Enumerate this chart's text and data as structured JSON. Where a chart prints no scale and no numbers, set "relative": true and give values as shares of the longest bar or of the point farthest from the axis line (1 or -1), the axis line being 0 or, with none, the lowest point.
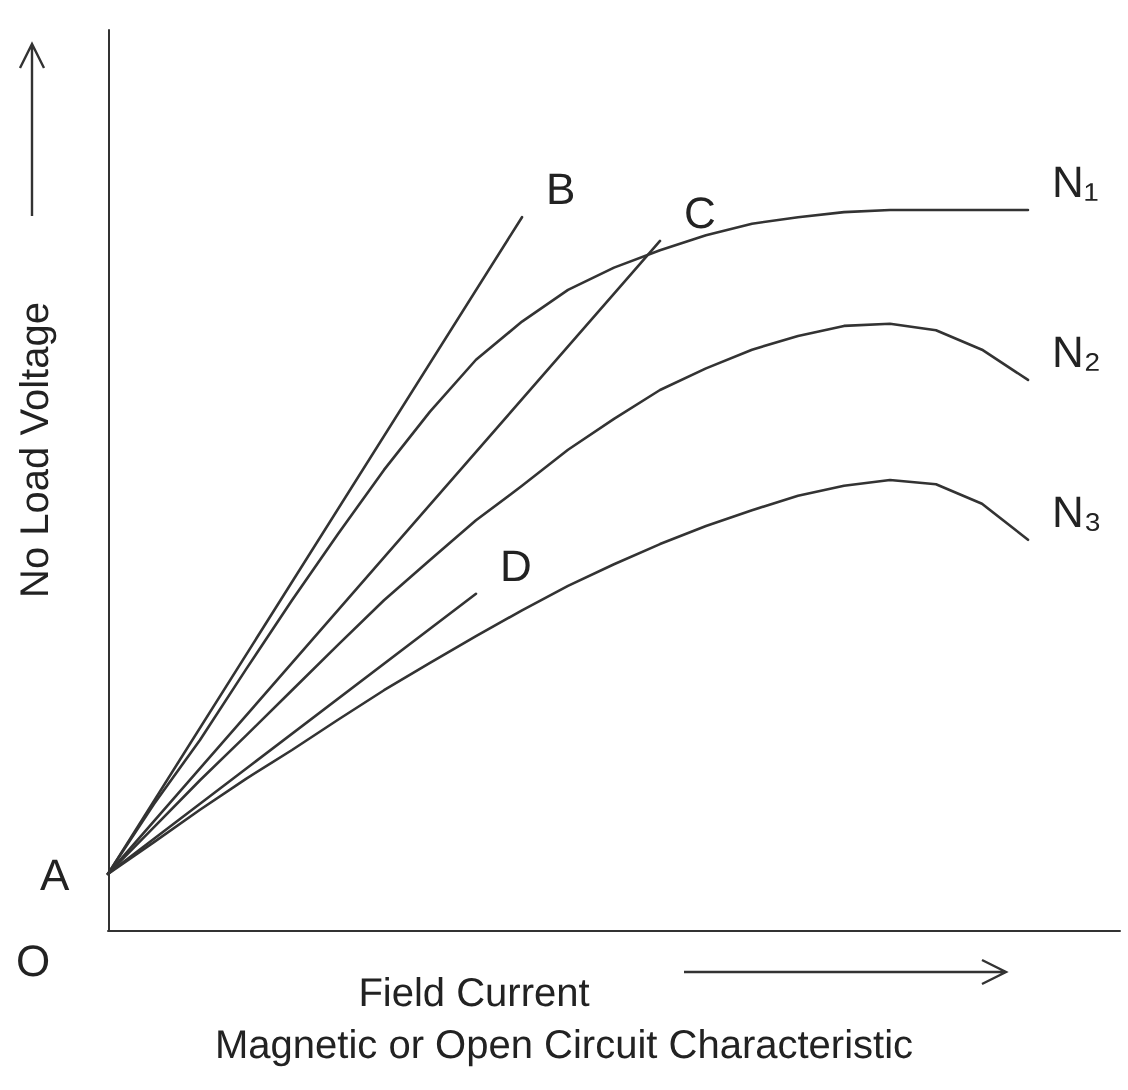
{
  "chart_data": {
    "type": "line",
    "title": "Magnetic or Open Circuit Characteristic",
    "xlabel": "Field Current",
    "ylabel": "No Load Voltage",
    "relative": true,
    "legend": false,
    "grid": false,
    "marker": "none",
    "line_style": "solid",
    "annotations": [
      "A",
      "O"
    ],
    "categories": [
      null,
      null,
      null,
      null,
      null,
      null,
      null,
      null,
      null,
      null,
      null,
      null,
      null,
      null,
      null,
      null,
      null,
      null,
      null,
      null,
      null,
      null,
      null
    ],
    "series": [
      {
        "name": "B",
        "color": "#333333",
        "values": [
          0.078,
          null,
          null,
          null,
          null,
          null,
          null,
          null,
          null,
          0.99,
          null,
          null,
          null,
          null,
          null,
          null,
          null,
          null,
          null,
          null,
          null,
          null,
          null
        ]
      },
      {
        "name": "C",
        "color": "#333333",
        "values": [
          0.078,
          null,
          null,
          null,
          null,
          null,
          null,
          null,
          null,
          null,
          null,
          null,
          0.957,
          null,
          null,
          null,
          null,
          null,
          null,
          null,
          null,
          null,
          null
        ]
      },
      {
        "name": "D",
        "color": "#333333",
        "values": [
          0.078,
          null,
          null,
          null,
          null,
          null,
          null,
          null,
          0.467,
          null,
          null,
          null,
          null,
          null,
          null,
          null,
          null,
          null,
          null,
          null,
          null,
          null,
          null
        ]
      },
      {
        "name": "N₁",
        "color": "#333333",
        "values": [
          0.078,
          0.175,
          0.264,
          0.362,
          0.458,
          0.55,
          0.639,
          0.72,
          0.792,
          0.845,
          0.889,
          0.92,
          0.944,
          0.965,
          0.981,
          0.99,
          0.997,
          1.0,
          1.0,
          1.0,
          1.0,
          null,
          null
        ]
      },
      {
        "name": "N₂",
        "color": "#333333",
        "values": [
          0.078,
          0.143,
          0.208,
          0.27,
          0.333,
          0.396,
          0.458,
          0.514,
          0.569,
          0.617,
          0.667,
          0.71,
          0.75,
          0.78,
          0.806,
          0.825,
          0.839,
          0.842,
          0.833,
          0.806,
          0.764,
          null,
          null
        ]
      },
      {
        "name": "N₃",
        "color": "#333333",
        "values": [
          0.078,
          0.122,
          0.167,
          0.21,
          0.25,
          0.292,
          0.333,
          0.371,
          0.408,
          0.444,
          0.478,
          0.508,
          0.536,
          0.561,
          0.583,
          0.603,
          0.617,
          0.625,
          0.619,
          0.592,
          0.542,
          null,
          null
        ]
      }
    ]
  }
}
